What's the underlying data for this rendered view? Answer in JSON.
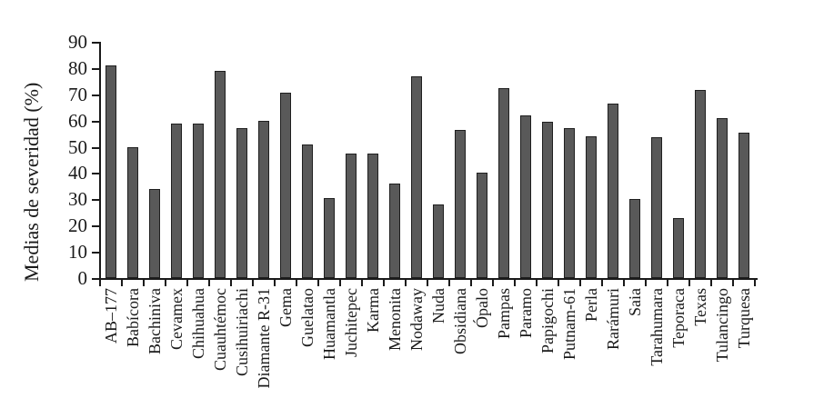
{
  "chart_data": {
    "type": "bar",
    "title": "",
    "xlabel": "",
    "ylabel": "Medias de severidad (%)",
    "ylim": [
      0,
      90
    ],
    "ytick_step": 10,
    "y_tick_labels": [
      "0",
      "10",
      "20",
      "30",
      "40",
      "50",
      "60",
      "70",
      "80",
      "90"
    ],
    "grid": false,
    "legend": null,
    "bar_color": "#595959",
    "bar_border_color": "#1f1f1f",
    "axis_color": "#1a1a1a",
    "categories": [
      "AB–177",
      "Babícora",
      "Bachiniva",
      "Cevamex",
      "Chihuahua",
      "Cuauhtémoc",
      "Cusihuiriachi",
      "Diamante R-31",
      "Gema",
      "Guelatao",
      "Huamantla",
      "Juchitepec",
      "Karma",
      "Menonita",
      "Nodaway",
      "Nuda",
      "Obsidiana",
      "Ópalo",
      "Pampas",
      "Paramo",
      "Papigochi",
      "Putnam-61",
      "Perla",
      "Rarámuri",
      "Saia",
      "Tarahumara",
      "Teporaca",
      "Texas",
      "Tulancingo",
      "Turquesa"
    ],
    "values": [
      81,
      50,
      34,
      59,
      59,
      79,
      57,
      60,
      70.5,
      51,
      30.5,
      47.5,
      47.5,
      36,
      77,
      28,
      56.5,
      40,
      72.5,
      62,
      59.5,
      57,
      54,
      66.5,
      30,
      53.5,
      23,
      71.5,
      61,
      55.5
    ]
  }
}
